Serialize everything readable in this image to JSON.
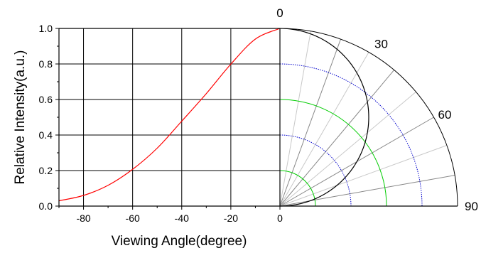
{
  "chart_data": {
    "type": "line",
    "xlabel": "Viewing Angle(degree)",
    "ylabel": "Relative Intensity(a.u.)",
    "xlim": [
      -90,
      0
    ],
    "ylim": [
      0,
      1
    ],
    "x_ticks": [
      -80,
      -60,
      -40,
      -20,
      0
    ],
    "x_tick_labels": [
      "-80",
      "-60",
      "-40",
      "-20",
      "0"
    ],
    "y_ticks": [
      0,
      0.2,
      0.4,
      0.6,
      0.8,
      1.0
    ],
    "y_tick_labels": [
      "0.0",
      "0.2",
      "0.4",
      "0.6",
      "0.8",
      "1.0"
    ],
    "grid": true,
    "series": [
      {
        "color": "#ff0000",
        "x": [
          -90,
          -80,
          -70,
          -60,
          -50,
          -40,
          -30,
          -20,
          -10,
          0
        ],
        "y": [
          0.03,
          0.06,
          0.117,
          0.207,
          0.326,
          0.478,
          0.633,
          0.799,
          0.94,
          1.0
        ]
      }
    ],
    "polar": {
      "angle_labels": [
        "0",
        "30",
        "60",
        "90"
      ],
      "radial_max": 1.0,
      "circle_radii": [
        0.2,
        0.4,
        0.6,
        0.8,
        1.0
      ],
      "circle_colors": {
        "0.2": "#00cc00",
        "0.4": "#0000cc",
        "0.6": "#00cc00",
        "0.8": "#0000cc",
        "1.0": "#000000"
      },
      "spoke_angles": [
        10,
        20,
        30,
        40,
        50,
        60,
        70,
        80
      ],
      "intensity_profile": "cosine",
      "profile_color": "#000000"
    }
  }
}
